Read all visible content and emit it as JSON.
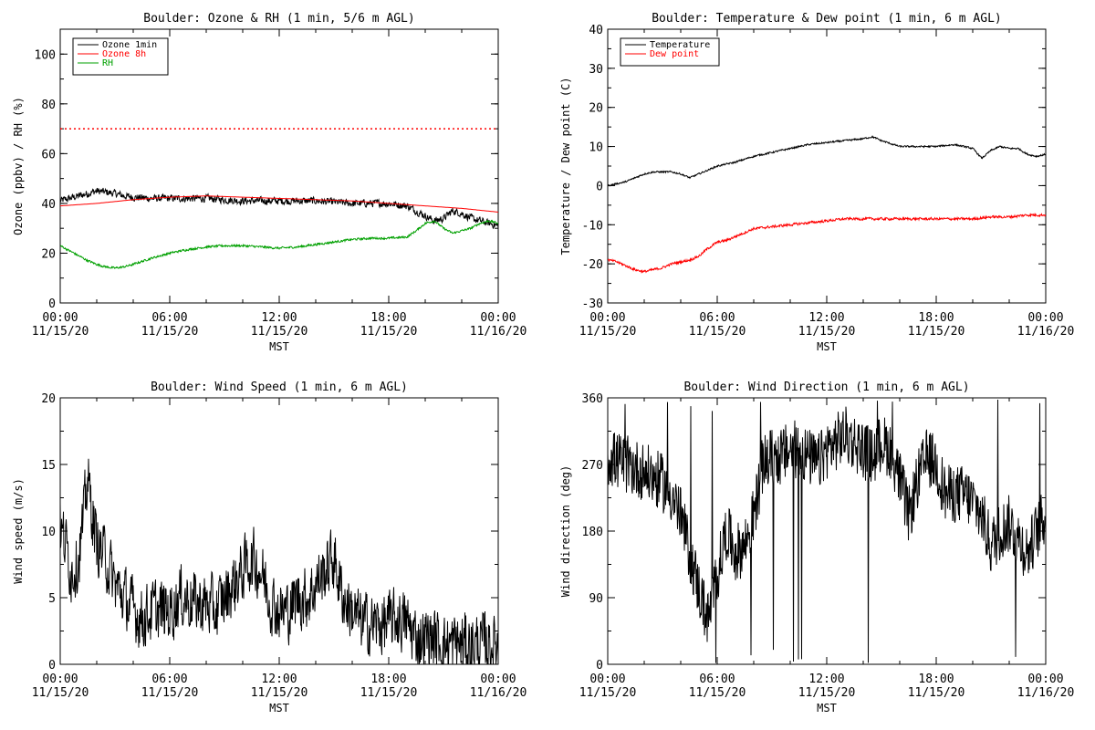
{
  "chart_data": [
    {
      "type": "line",
      "title": "Boulder: Ozone & RH (1 min, 5/6 m AGL)",
      "xlabel": "MST",
      "ylabel": "Ozone (ppbv) / RH (%)",
      "x_range_hours": [
        0,
        24
      ],
      "x_ticks": [
        "00:00 11/15/20",
        "06:00 11/15/20",
        "12:00 11/15/20",
        "18:00 11/15/20",
        "00:00 11/16/20"
      ],
      "ylim": [
        0,
        110
      ],
      "y_ticks": [
        0,
        20,
        40,
        60,
        80,
        100
      ],
      "legend_position": "top-left",
      "reference_line": {
        "y": 70,
        "style": "dotted",
        "color": "#ff0000"
      },
      "series": [
        {
          "name": "Ozone 1min",
          "color": "#000000",
          "noise": 1.4,
          "x": [
            0,
            0.5,
            1,
            1.5,
            2,
            2.5,
            3,
            3.5,
            4,
            5,
            6,
            7,
            8,
            9,
            10,
            11,
            12,
            13,
            14,
            15,
            16,
            17,
            18,
            19,
            19.5,
            20,
            20.5,
            21,
            21.5,
            22,
            22.5,
            23,
            23.5,
            24
          ],
          "y": [
            41,
            42,
            43,
            44,
            45,
            44.5,
            44,
            43,
            42.5,
            42,
            42,
            42,
            42,
            41.5,
            41,
            41,
            41,
            41,
            41,
            40.5,
            40,
            40,
            40,
            39,
            37,
            35,
            33,
            34,
            37,
            36,
            34,
            33,
            32,
            31
          ]
        },
        {
          "name": "Ozone 8h",
          "color": "#ff0000",
          "noise": 0,
          "x": [
            0,
            2,
            4,
            6,
            8,
            10,
            12,
            14,
            16,
            18,
            20,
            22,
            24
          ],
          "y": [
            39,
            40,
            41.5,
            42.5,
            43,
            42.5,
            42,
            41.5,
            41,
            40,
            39,
            38,
            36.5
          ]
        },
        {
          "name": "RH",
          "color": "#00a000",
          "noise": 0.4,
          "x": [
            0,
            0.5,
            1,
            1.5,
            2,
            2.5,
            3,
            3.5,
            4,
            5,
            6,
            7,
            8,
            9,
            10,
            11,
            12,
            13,
            14,
            15,
            16,
            17,
            18,
            19,
            19.5,
            20,
            20.5,
            21,
            21.5,
            22,
            22.5,
            23,
            23.5,
            24
          ],
          "y": [
            23,
            21,
            19,
            17,
            15.5,
            14.5,
            14,
            14.5,
            15.5,
            18,
            20,
            21.5,
            22.5,
            23,
            23,
            22.5,
            22,
            22.5,
            23.5,
            24.5,
            25.5,
            26,
            26,
            26.5,
            29,
            32,
            33,
            30,
            28,
            29,
            30,
            32,
            33,
            32
          ]
        }
      ]
    },
    {
      "type": "line",
      "title": "Boulder: Temperature & Dew point (1 min, 6 m AGL)",
      "xlabel": "MST",
      "ylabel": "Temperature / Dew point (C)",
      "x_range_hours": [
        0,
        24
      ],
      "x_ticks": [
        "00:00 11/15/20",
        "06:00 11/15/20",
        "12:00 11/15/20",
        "18:00 11/15/20",
        "00:00 11/16/20"
      ],
      "ylim": [
        -30,
        40
      ],
      "y_ticks": [
        -30,
        -20,
        -10,
        0,
        10,
        20,
        30,
        40
      ],
      "legend_position": "top-left",
      "series": [
        {
          "name": "Temperature",
          "color": "#000000",
          "noise": 0.2,
          "x": [
            0,
            0.5,
            1,
            1.5,
            2,
            2.5,
            3,
            3.5,
            4,
            4.5,
            5,
            5.5,
            6,
            7,
            8,
            9,
            10,
            11,
            12,
            13,
            14,
            14.5,
            15,
            16,
            17,
            18,
            19,
            20,
            20.5,
            21,
            21.5,
            22,
            22.5,
            23,
            23.5,
            24
          ],
          "y": [
            0,
            0.5,
            1,
            2,
            3,
            3.5,
            3.5,
            3.5,
            3,
            2,
            3,
            4,
            5,
            6,
            7.5,
            8.5,
            9.5,
            10.5,
            11,
            11.5,
            12,
            12.5,
            11.5,
            10,
            10,
            10,
            10.5,
            9.5,
            7,
            9,
            10,
            9.5,
            9.5,
            8,
            7.5,
            8
          ]
        },
        {
          "name": "Dew point",
          "color": "#ff0000",
          "noise": 0.3,
          "x": [
            0,
            0.5,
            1,
            1.5,
            2,
            2.5,
            3,
            3.5,
            4,
            4.5,
            5,
            5.5,
            6,
            6.5,
            7,
            7.5,
            8,
            9,
            10,
            11,
            12,
            13,
            14,
            15,
            16,
            17,
            18,
            19,
            20,
            21,
            22,
            23,
            24
          ],
          "y": [
            -19,
            -19.5,
            -20.5,
            -21.5,
            -22,
            -21.5,
            -21,
            -20,
            -19.5,
            -19,
            -18,
            -16,
            -14.5,
            -14,
            -13,
            -12,
            -11,
            -10.5,
            -10,
            -9.5,
            -9,
            -8.5,
            -8.5,
            -8.5,
            -8.5,
            -8.5,
            -8.5,
            -8.5,
            -8.5,
            -8,
            -8,
            -7.5,
            -7.5
          ]
        }
      ]
    },
    {
      "type": "line",
      "title": "Boulder: Wind Speed (1 min, 6 m AGL)",
      "xlabel": "MST",
      "ylabel": "Wind speed (m/s)",
      "x_range_hours": [
        0,
        24
      ],
      "x_ticks": [
        "00:00 11/15/20",
        "06:00 11/15/20",
        "12:00 11/15/20",
        "18:00 11/15/20",
        "00:00 11/16/20"
      ],
      "ylim": [
        0,
        20
      ],
      "y_ticks": [
        0,
        5,
        10,
        15,
        20
      ],
      "series": [
        {
          "name": "",
          "color": "#000000",
          "noise": 2.2,
          "x": [
            0,
            0.3,
            0.6,
            1,
            1.3,
            1.5,
            1.7,
            2,
            2.5,
            3,
            3.5,
            4,
            4.5,
            5,
            5.5,
            6,
            6.5,
            7,
            7.5,
            8,
            8.5,
            9,
            9.5,
            10,
            10.5,
            11,
            11.5,
            12,
            12.5,
            13,
            13.5,
            14,
            14.5,
            15,
            15.5,
            16,
            16.5,
            17,
            17.5,
            18,
            18.5,
            19,
            19.5,
            20,
            20.5,
            21,
            21.5,
            22,
            22.5,
            23,
            23.5,
            24
          ],
          "y": [
            10,
            9,
            7,
            8,
            11,
            14,
            12,
            9,
            8,
            6,
            5,
            4,
            3.5,
            4,
            4,
            4,
            5,
            5,
            4.5,
            4.5,
            4,
            5,
            6,
            7,
            8,
            7,
            5,
            4,
            4,
            5,
            5,
            6,
            7,
            8,
            5,
            4,
            3,
            3,
            3,
            3,
            3.5,
            3,
            2,
            2,
            2,
            1.5,
            1.5,
            1.5,
            1.5,
            1.5,
            1.5,
            1.5
          ]
        }
      ]
    },
    {
      "type": "line",
      "title": "Boulder: Wind Direction (1 min, 6 m AGL)",
      "xlabel": "MST",
      "ylabel": "Wind direction (deg)",
      "x_range_hours": [
        0,
        24
      ],
      "x_ticks": [
        "00:00 11/15/20",
        "06:00 11/15/20",
        "12:00 11/15/20",
        "18:00 11/15/20",
        "00:00 11/16/20"
      ],
      "ylim": [
        0,
        360
      ],
      "y_ticks": [
        0,
        90,
        180,
        270,
        360
      ],
      "series": [
        {
          "name": "",
          "color": "#000000",
          "noise": 40,
          "wrap": true,
          "x": [
            0,
            1,
            2,
            3,
            3.5,
            4,
            4.5,
            5,
            5.5,
            6,
            6.5,
            7,
            7.5,
            8,
            8.5,
            9,
            9.5,
            10,
            10.5,
            11,
            11.5,
            12,
            12.5,
            13,
            13.5,
            14,
            14.5,
            15,
            15.5,
            16,
            16.5,
            17,
            17.5,
            18,
            18.5,
            19,
            19.5,
            20,
            20.5,
            21,
            21.5,
            22,
            22.5,
            23,
            23.5,
            24
          ],
          "y": [
            280,
            270,
            260,
            245,
            230,
            200,
            150,
            100,
            60,
            120,
            180,
            150,
            160,
            200,
            270,
            280,
            280,
            290,
            290,
            280,
            270,
            290,
            300,
            310,
            300,
            290,
            280,
            300,
            290,
            250,
            200,
            250,
            280,
            270,
            230,
            230,
            230,
            220,
            200,
            160,
            180,
            190,
            170,
            150,
            180,
            200
          ]
        }
      ]
    }
  ]
}
